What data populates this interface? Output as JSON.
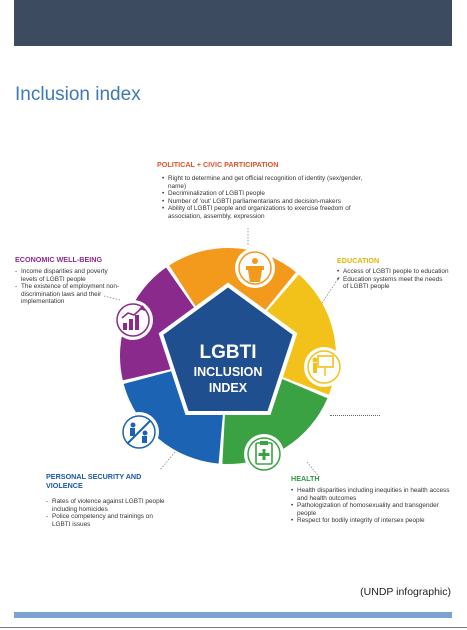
{
  "page": {
    "title": "Inclusion index",
    "caption": "(UNDP infographic)"
  },
  "center": {
    "line1": "LGBTI",
    "line2": "INCLUSION",
    "line3": "INDEX"
  },
  "sections": {
    "political": {
      "heading": "POLITICAL + CIVIC PARTICIPATION",
      "color": "#e1532a",
      "items": [
        "Right to determine and get official recognition of identity (sex/gender, name)",
        "Decriminalization of LGBTI people",
        "Number of 'out' LGBTI parliamentarians and decision-makers",
        "Ability of LGBTI people and organizations to exercise freedom of association, assembly, expression"
      ]
    },
    "education": {
      "heading": "EDUCATION",
      "color": "#e8b400",
      "items": [
        "Access of LGBTI people to education",
        "Education systems meet the needs of LGBTI people"
      ]
    },
    "health": {
      "heading": "HEALTH",
      "color": "#2e9a45",
      "items": [
        "Health disparities including inequities in health access and health outcomes",
        "Pathologization of homosexuality and transgender people",
        "Respect for bodily integrity of intersex people"
      ]
    },
    "security": {
      "heading": "PERSONAL SECURITY AND VIOLENCE",
      "color": "#1a56a8",
      "items": [
        "Rates of violence against LGBTI people including homicides",
        "Police competency and trainings on LGBTI issues"
      ]
    },
    "economic": {
      "heading": "ECONOMIC WELL-BEING",
      "color": "#8b2b8c",
      "items": [
        "Income disparities and poverty levels of LGBTI people",
        "The existence of employment non-discrimination laws and their implementation"
      ]
    }
  },
  "colors": {
    "orange": "#f39a1d",
    "yellow": "#f2c21b",
    "green": "#3aa243",
    "blue": "#1c63b4",
    "purple": "#8a2a8c",
    "pentagon": "#1f4f8f"
  },
  "icons": {
    "political": "podium-icon",
    "education": "teacher-board-icon",
    "health": "clipboard-cross-icon",
    "security": "no-violence-icon",
    "economic": "growth-chart-icon"
  }
}
